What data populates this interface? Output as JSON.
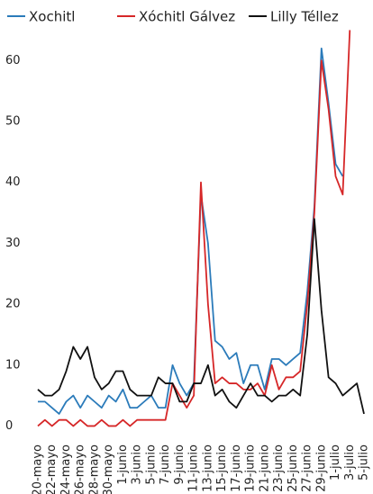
{
  "chart_data": {
    "type": "line",
    "categories": [
      "20-mayo",
      null,
      "22-mayo",
      null,
      "24-mayo",
      null,
      "26-mayo",
      null,
      "28-mayo",
      null,
      "30-mayo",
      null,
      "1-junio",
      null,
      "3-junio",
      null,
      "5-junio",
      null,
      "7-junio",
      null,
      "9-junio",
      null,
      "11-junio",
      null,
      "13-junio",
      null,
      "15-junio",
      null,
      "17-junio",
      null,
      "19-junio",
      null,
      "21-junio",
      null,
      "23-junio",
      null,
      "25-junio",
      null,
      "27-junio",
      null,
      "29-junio",
      null,
      "1-julio",
      null,
      "3-julio",
      null,
      "5-julio"
    ],
    "series": [
      {
        "name": "Xochitl",
        "color": "#2b7bba",
        "values": [
          4,
          4,
          3,
          2,
          4,
          5,
          3,
          5,
          4,
          3,
          5,
          4,
          6,
          3,
          3,
          4,
          5,
          3,
          3,
          10,
          7,
          5,
          7,
          38,
          30,
          14,
          13,
          11,
          12,
          7,
          10,
          10,
          6,
          11,
          11,
          10,
          11,
          12,
          22,
          36,
          62,
          53,
          43,
          41,
          null,
          null,
          null
        ]
      },
      {
        "name": "Xóchitl Gálvez",
        "color": "#d62728",
        "values": [
          0,
          1,
          0,
          1,
          1,
          0,
          1,
          0,
          0,
          1,
          0,
          0,
          1,
          0,
          1,
          1,
          1,
          1,
          1,
          7,
          5,
          3,
          5,
          40,
          20,
          7,
          8,
          7,
          7,
          6,
          6,
          7,
          5,
          10,
          6,
          8,
          8,
          9,
          20,
          35,
          60,
          52,
          41,
          38,
          65,
          null,
          null
        ]
      },
      {
        "name": "Lilly Téllez",
        "color": "#111111",
        "values": [
          6,
          5,
          5,
          6,
          9,
          13,
          11,
          13,
          8,
          6,
          7,
          9,
          9,
          6,
          5,
          5,
          5,
          8,
          7,
          7,
          4,
          4,
          7,
          7,
          10,
          5,
          6,
          4,
          3,
          5,
          7,
          5,
          5,
          4,
          5,
          5,
          6,
          5,
          15,
          34,
          19,
          8,
          7,
          5,
          6,
          7,
          2
        ]
      }
    ],
    "ylim": [
      -1,
      67
    ],
    "yticks": [
      0,
      10,
      20,
      30,
      40,
      50,
      60
    ],
    "grid": false,
    "legend": "top"
  }
}
